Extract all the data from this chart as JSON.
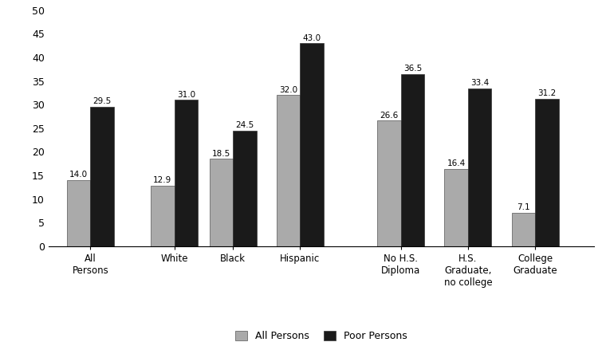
{
  "categories": [
    "All\nPersons",
    "White",
    "Black",
    "Hispanic",
    "No H.S.\nDiploma",
    "H.S.\nGraduate,\nno college",
    "College\nGraduate"
  ],
  "all_persons": [
    14.0,
    12.9,
    18.5,
    32.0,
    26.6,
    16.4,
    7.1
  ],
  "poor_persons": [
    29.5,
    31.0,
    24.5,
    43.0,
    36.5,
    33.4,
    31.2
  ],
  "bar_color_all": "#aaaaaa",
  "bar_color_poor": "#1a1a1a",
  "ylim": [
    0,
    50
  ],
  "yticks": [
    0,
    5,
    10,
    15,
    20,
    25,
    30,
    35,
    40,
    45,
    50
  ],
  "legend_all": "All Persons",
  "legend_poor": "Poor Persons",
  "bar_width": 0.28,
  "x_positions": [
    0.5,
    1.5,
    2.2,
    3.0,
    4.2,
    5.0,
    5.8
  ],
  "x_lim": [
    0,
    6.5
  ]
}
